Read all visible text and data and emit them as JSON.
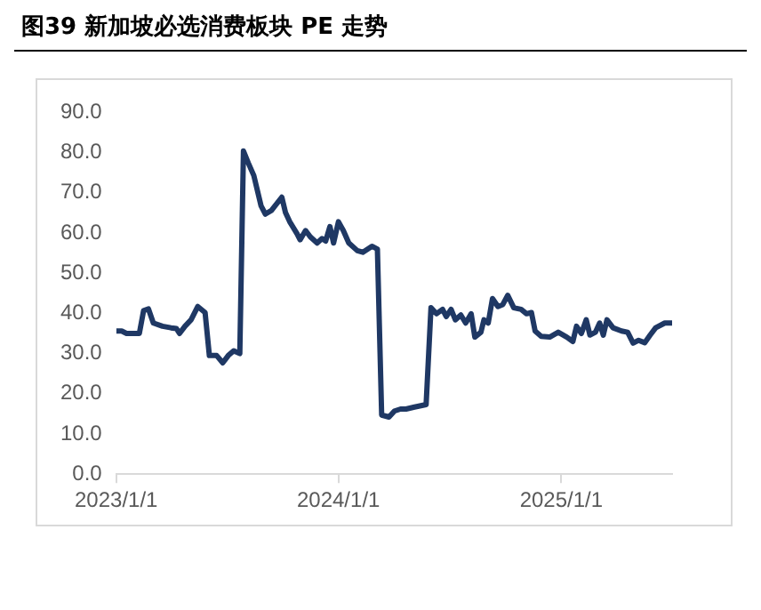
{
  "chart_data": {
    "type": "line",
    "title": "图39 新加坡必选消费板块 PE 走势",
    "x": [
      "2023-01-01",
      "2023-01-10",
      "2023-01-18",
      "2023-02-08",
      "2023-02-15",
      "2023-02-23",
      "2023-03-03",
      "2023-03-18",
      "2023-04-01",
      "2023-04-10",
      "2023-04-15",
      "2023-04-24",
      "2023-05-04",
      "2023-05-15",
      "2023-05-27",
      "2023-06-03",
      "2023-06-15",
      "2023-06-25",
      "2023-07-04",
      "2023-07-13",
      "2023-07-23",
      "2023-07-29",
      "2023-08-06",
      "2023-08-15",
      "2023-08-27",
      "2023-09-03",
      "2023-09-13",
      "2023-09-30",
      "2023-10-06",
      "2023-10-13",
      "2023-10-25",
      "2023-10-30",
      "2023-11-08",
      "2023-11-16",
      "2023-11-27",
      "2023-12-05",
      "2023-12-11",
      "2023-12-18",
      "2023-12-24",
      "2024-01-01",
      "2024-01-09",
      "2024-01-18",
      "2024-02-01",
      "2024-02-10",
      "2024-02-25",
      "2024-03-05",
      "2024-03-12",
      "2024-03-24",
      "2024-04-02",
      "2024-04-12",
      "2024-04-21",
      "2024-05-05",
      "2024-05-24",
      "2024-06-01",
      "2024-06-10",
      "2024-06-20",
      "2024-06-26",
      "2024-07-04",
      "2024-07-11",
      "2024-07-20",
      "2024-07-28",
      "2024-08-06",
      "2024-08-12",
      "2024-08-22",
      "2024-08-27",
      "2024-09-03",
      "2024-09-10",
      "2024-09-19",
      "2024-09-27",
      "2024-10-05",
      "2024-10-15",
      "2024-10-27",
      "2024-11-05",
      "2024-11-13",
      "2024-11-19",
      "2024-11-29",
      "2024-12-13",
      "2024-12-27",
      "2025-01-10",
      "2025-01-20",
      "2025-01-26",
      "2025-02-03",
      "2025-02-11",
      "2025-02-17",
      "2025-02-26",
      "2025-03-05",
      "2025-03-11",
      "2025-03-17",
      "2025-03-27",
      "2025-04-10",
      "2025-04-20",
      "2025-04-29",
      "2025-05-08",
      "2025-05-18",
      "2025-05-27",
      "2025-06-05",
      "2025-06-20",
      "2025-07-02"
    ],
    "series": [
      {
        "color": "#1f3864",
        "values": [
          35.6,
          35.6,
          35,
          35,
          40.7,
          41.1,
          37.6,
          36.8,
          36.4,
          36.2,
          35,
          36.8,
          38.4,
          41.7,
          40.2,
          29.5,
          29.5,
          27.7,
          29.5,
          30.7,
          30,
          80.4,
          77.4,
          74.3,
          66.7,
          64.7,
          65.6,
          68.9,
          65.1,
          62.8,
          59.8,
          58.3,
          60.6,
          59,
          57.5,
          58.6,
          58,
          61.6,
          57.5,
          62.8,
          60.6,
          57.5,
          55.6,
          55.2,
          56.7,
          56,
          14.7,
          14.2,
          15.7,
          16.2,
          16.2,
          16.7,
          17.3,
          41.4,
          39.9,
          41,
          39.2,
          41,
          38.4,
          39.6,
          37.6,
          39.9,
          34.1,
          35.3,
          38.4,
          37.6,
          43.7,
          41.7,
          42.2,
          44.5,
          41.4,
          41,
          39.9,
          40.2,
          35.6,
          34.3,
          34.1,
          35.3,
          34.1,
          33,
          36.8,
          35,
          38.4,
          34.6,
          35.3,
          37.6,
          34.6,
          38.4,
          36.4,
          35.6,
          35.3,
          32.6,
          33.3,
          32.7,
          34.6,
          36.4,
          37.6,
          37.6
        ]
      }
    ],
    "xlim": [
      "2023-01-01",
      "2025-07-02"
    ],
    "xticks": [
      {
        "value": "2023-01-01",
        "label": "2023/1/1"
      },
      {
        "value": "2024-01-01",
        "label": "2024/1/1"
      },
      {
        "value": "2025-01-01",
        "label": "2025/1/1"
      }
    ],
    "ylim": [
      0,
      90
    ],
    "yticks": [
      {
        "value": 0,
        "label": "0.0"
      },
      {
        "value": 10,
        "label": "10.0"
      },
      {
        "value": 20,
        "label": "20.0"
      },
      {
        "value": 30,
        "label": "30.0"
      },
      {
        "value": 40,
        "label": "40.0"
      },
      {
        "value": 50,
        "label": "50.0"
      },
      {
        "value": 60,
        "label": "60.0"
      },
      {
        "value": 70,
        "label": "70.0"
      },
      {
        "value": 80,
        "label": "80.0"
      },
      {
        "value": 90,
        "label": "90.0"
      }
    ],
    "grid": false,
    "legend": false,
    "marker": "none",
    "line_style": "solid"
  }
}
